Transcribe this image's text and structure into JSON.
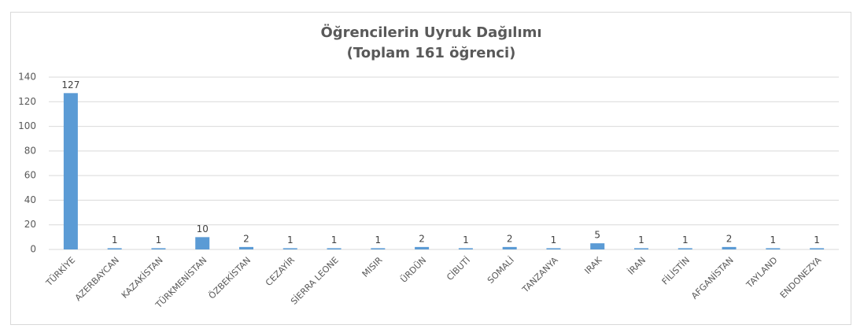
{
  "chart_data": {
    "type": "bar",
    "title": "Öğrencilerin Uyruk Dağılımı",
    "subtitle": "(Toplam 161 öğrenci)",
    "categories": [
      "TÜRKİYE",
      "AZERBAYCAN",
      "KAZAKİSTAN",
      "TÜRKMENİSTAN",
      "ÖZBEKİSTAN",
      "CEZAYİR",
      "SİERRA LEONE",
      "MISIR",
      "ÜRDÜN",
      "CİBUTİ",
      "SOMALİ",
      "TANZANYA",
      "IRAK",
      "İRAN",
      "FİLİSTİN",
      "AFGANİSTAN",
      "TAYLAND",
      "ENDONEZYA"
    ],
    "values": [
      127,
      1,
      1,
      10,
      2,
      1,
      1,
      1,
      2,
      1,
      2,
      1,
      5,
      1,
      1,
      2,
      1,
      1
    ],
    "color": "#5b9bd5",
    "ylim": [
      0,
      140
    ],
    "yticks": [
      0,
      20,
      40,
      60,
      80,
      100,
      120,
      140
    ],
    "grid": true
  }
}
